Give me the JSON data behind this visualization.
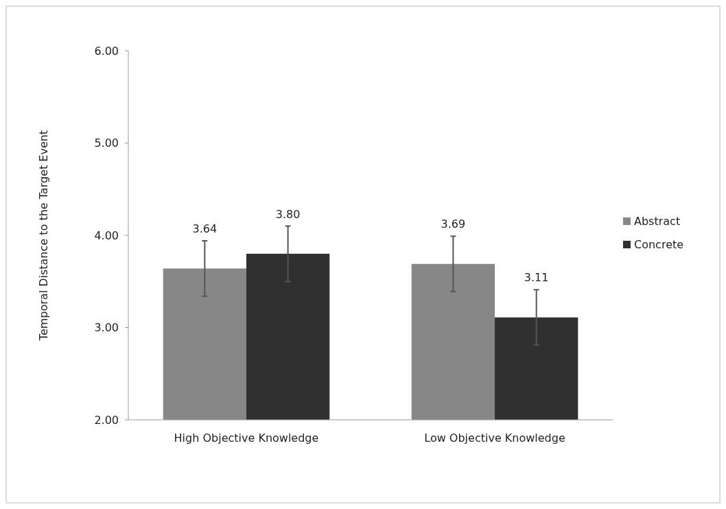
{
  "chart_data": {
    "type": "bar",
    "ylabel": "Temporal Distance to the Target Event",
    "categories": [
      "High Objective Knowledge",
      "Low Objective Knowledge"
    ],
    "series": [
      {
        "name": "Abstract",
        "color": "#878787",
        "values": [
          3.64,
          3.69
        ],
        "errors": [
          0.3,
          0.3
        ],
        "value_labels": [
          "3.64",
          "3.69"
        ]
      },
      {
        "name": "Concrete",
        "color": "#303030",
        "values": [
          3.8,
          3.11
        ],
        "errors": [
          0.3,
          0.3
        ],
        "value_labels": [
          "3.80",
          "3.11"
        ]
      }
    ],
    "ylim": [
      2,
      6
    ],
    "yticks": [
      {
        "value": 2,
        "label": "2.00"
      },
      {
        "value": 3,
        "label": "3.00"
      },
      {
        "value": 4,
        "label": "4.00"
      },
      {
        "value": 5,
        "label": "5.00"
      },
      {
        "value": 6,
        "label": "6.00"
      }
    ],
    "grid": false,
    "legend": "right"
  }
}
